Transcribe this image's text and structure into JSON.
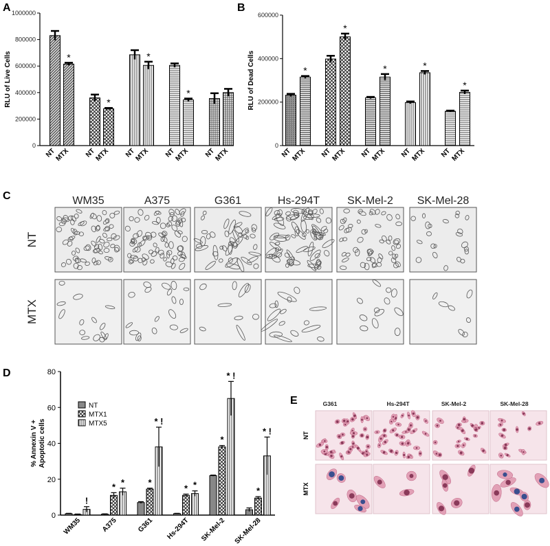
{
  "panel_labels": [
    "A",
    "B",
    "C",
    "D",
    "E"
  ],
  "chart_data": [
    {
      "panel": "A",
      "type": "bar",
      "ylabel": "RLU of Live Cells",
      "ylim": [
        0,
        1000000
      ],
      "yticks": [
        0,
        200000,
        400000,
        600000,
        800000,
        1000000
      ],
      "tick_labels": [
        "0",
        "200000",
        "400000",
        "600000",
        "800000",
        "1000000"
      ],
      "categories": [
        "NT",
        "MTX",
        "NT",
        "MTX",
        "NT",
        "MTX",
        "NT",
        "MTX",
        "NT",
        "MTX"
      ],
      "values": [
        830000,
        615000,
        360000,
        278000,
        685000,
        605000,
        605000,
        345000,
        355000,
        400000
      ],
      "errors": [
        35000,
        10000,
        25000,
        6000,
        35000,
        28000,
        15000,
        10000,
        40000,
        28000
      ],
      "significance": [
        "",
        "*",
        "",
        "*",
        "",
        "*",
        "",
        "*",
        "",
        ""
      ]
    },
    {
      "panel": "B",
      "type": "bar",
      "ylabel": "RLU of Dead Cells",
      "ylim": [
        0,
        600000
      ],
      "yticks": [
        0,
        200000,
        400000,
        600000
      ],
      "tick_labels": [
        "0",
        "200000",
        "400000",
        "600000"
      ],
      "categories": [
        "NT",
        "MTX",
        "NT",
        "MTX",
        "NT",
        "MTX",
        "NT",
        "MTX",
        "NT",
        "MTX"
      ],
      "values": [
        232000,
        315000,
        398000,
        500000,
        220000,
        315000,
        198000,
        335000,
        158000,
        245000
      ],
      "errors": [
        6000,
        5000,
        15000,
        15000,
        4000,
        14000,
        5000,
        8000,
        3000,
        8000
      ],
      "significance": [
        "",
        "*",
        "",
        "*",
        "",
        "*",
        "",
        "*",
        "",
        "*"
      ]
    },
    {
      "panel": "D",
      "type": "bar",
      "ylabel_line1": "% Annexin V +",
      "ylabel_line2": "Apoptotic cells",
      "ylim": [
        0,
        80
      ],
      "yticks": [
        0,
        20,
        40,
        60,
        80
      ],
      "tick_labels": [
        "0",
        "20",
        "40",
        "60",
        "80"
      ],
      "categories": [
        "WM35",
        "A375",
        "G361",
        "Hs-294T",
        "SK-Mel-2",
        "SK-Mel-28"
      ],
      "legend": [
        "NT",
        "MTX1",
        "MTX5"
      ],
      "series": [
        {
          "name": "NT",
          "values": [
            0.8,
            0.5,
            7,
            0.8,
            22,
            3
          ],
          "errors": [
            0.2,
            0.2,
            0.5,
            0.2,
            0.3,
            1
          ],
          "marks": [
            "",
            "",
            "",
            "",
            "",
            ""
          ]
        },
        {
          "name": "MTX1",
          "values": [
            0.4,
            11,
            14.5,
            11,
            38,
            9.5
          ],
          "errors": [
            0.2,
            1.5,
            0.5,
            0.7,
            0.8,
            0.8
          ],
          "marks": [
            "",
            "*",
            "*",
            "*",
            "*",
            "*"
          ]
        },
        {
          "name": "MTX5",
          "values": [
            3.2,
            13,
            38,
            12,
            65,
            33
          ],
          "errors": [
            1.5,
            2,
            11,
            1.5,
            9.5,
            10.5
          ],
          "marks": [
            "!",
            "*",
            "* !",
            "*",
            "* !",
            "* !"
          ]
        }
      ]
    }
  ],
  "panel_c": {
    "cell_lines": [
      "WM35",
      "A375",
      "G361",
      "Hs-294T",
      "SK-Mel-2",
      "SK-Mel-28"
    ],
    "rows": [
      "NT",
      "MTX"
    ]
  },
  "panel_e": {
    "cell_lines": [
      "G361",
      "Hs-294T",
      "SK-Mel-2",
      "SK-Mel-28"
    ],
    "rows": [
      "NT",
      "MTX"
    ]
  }
}
